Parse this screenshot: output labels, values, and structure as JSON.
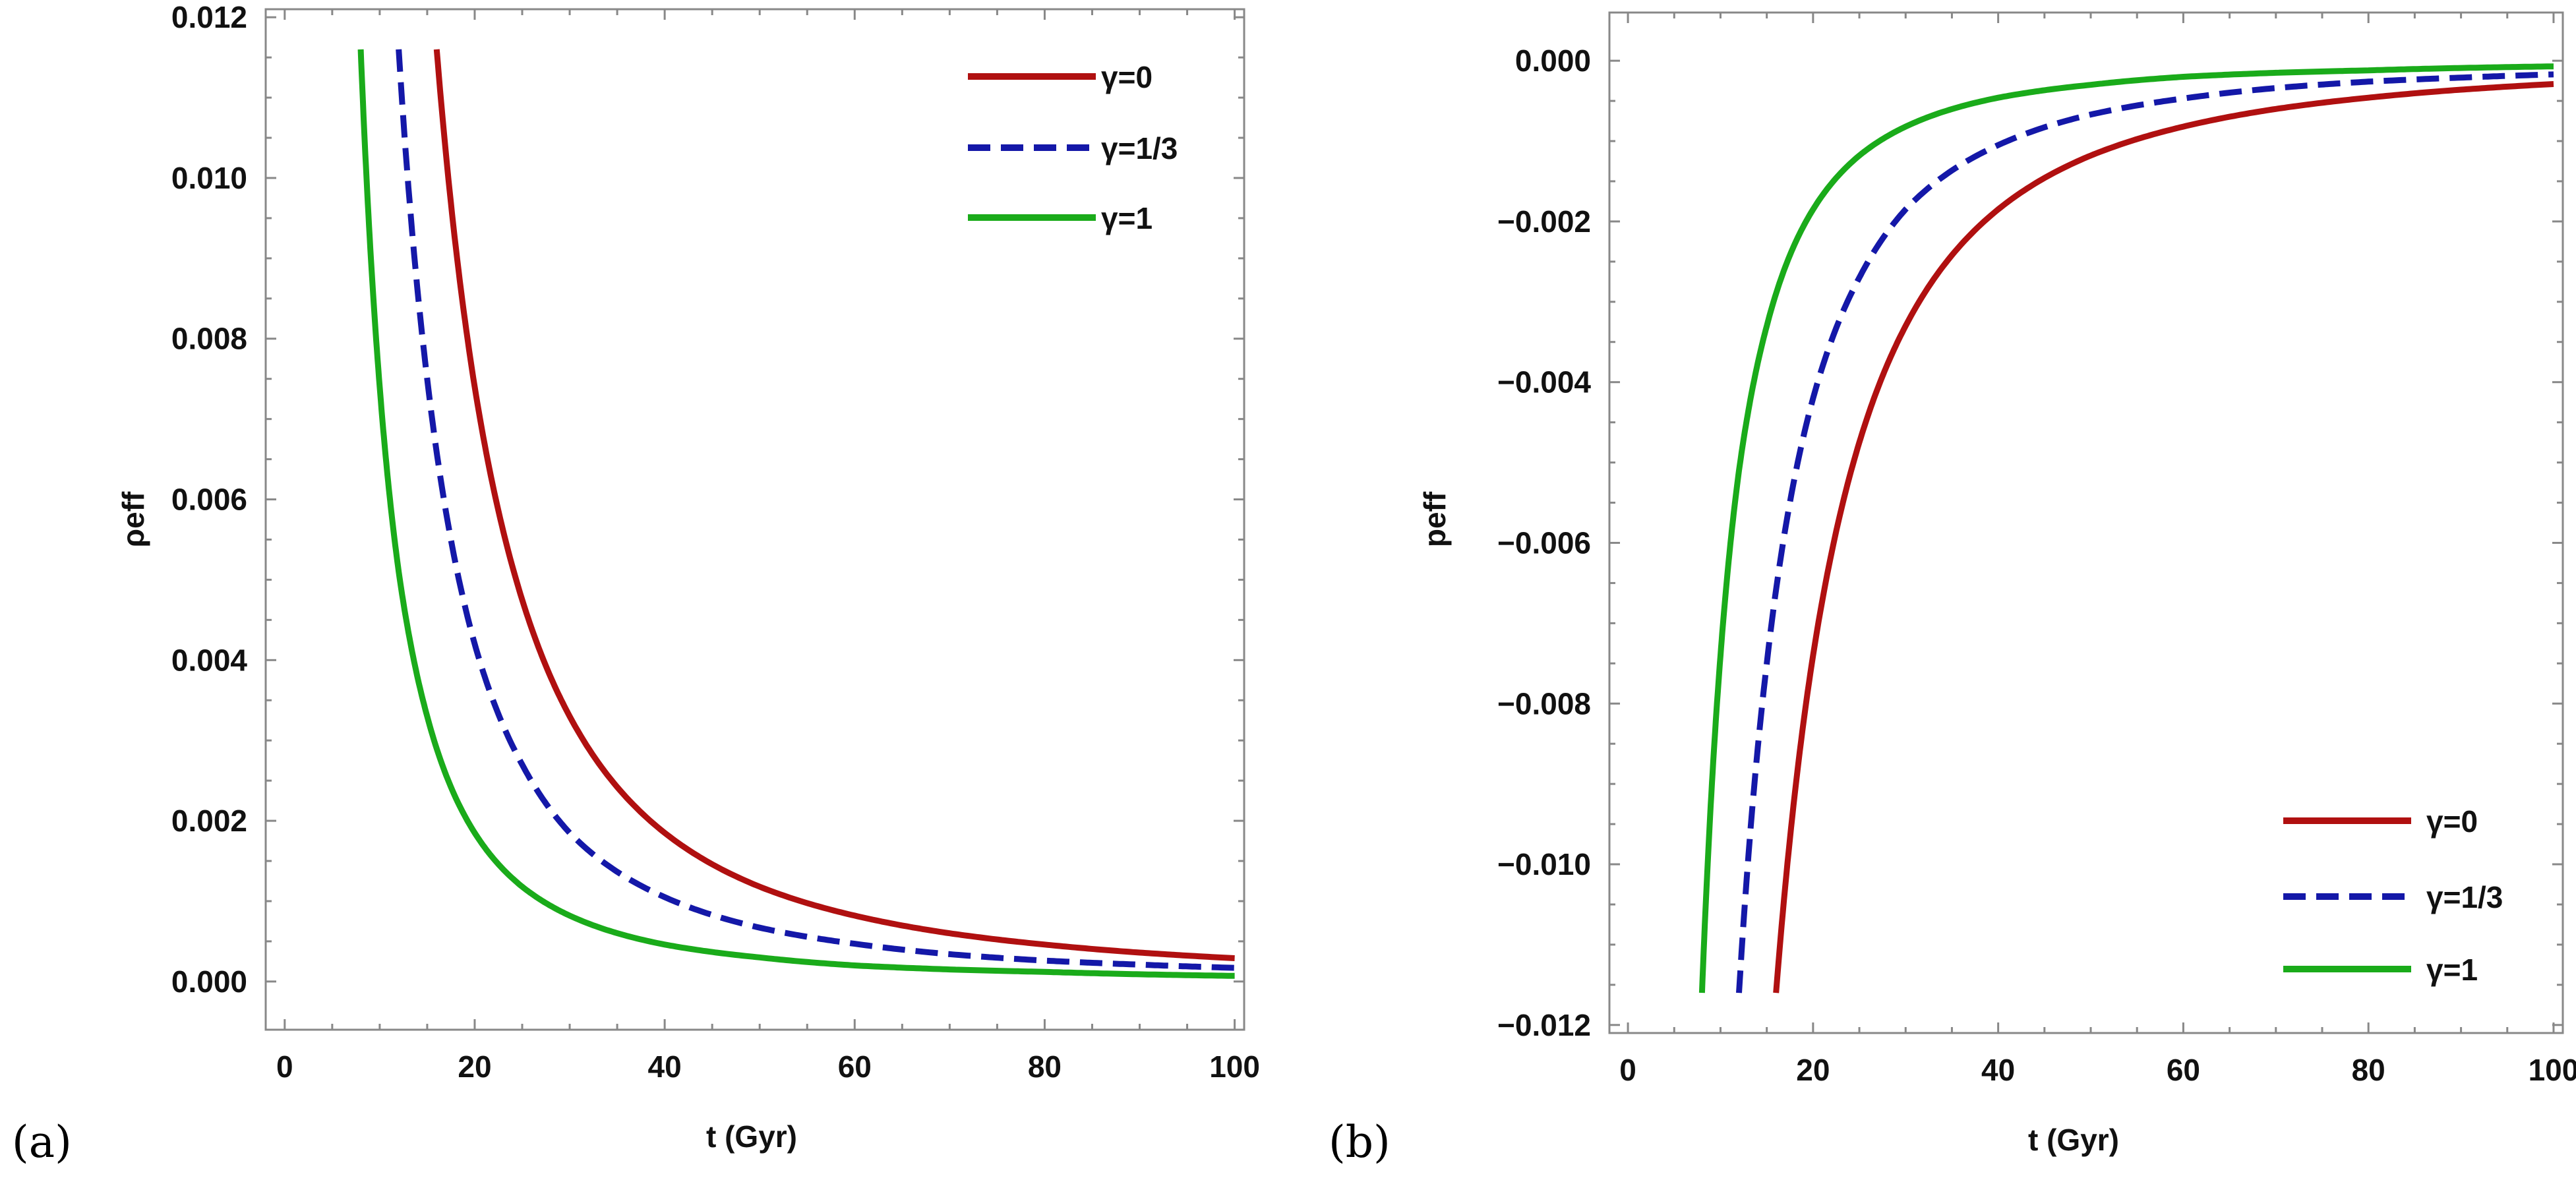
{
  "chart_data": [
    {
      "id": "a",
      "panel_label": "(a)",
      "type": "line",
      "title": "",
      "xlabel": "t (Gyr)",
      "ylabel": "ρeff",
      "xlim": [
        -2,
        101
      ],
      "ylim": [
        -0.0006,
        0.0121
      ],
      "xticks": [
        0,
        20,
        40,
        60,
        80,
        100
      ],
      "xtick_labels": [
        "0",
        "20",
        "40",
        "60",
        "80",
        "100"
      ],
      "yticks": [
        0.0,
        0.002,
        0.004,
        0.006,
        0.008,
        0.01,
        0.012
      ],
      "ytick_labels": [
        "0.000",
        "0.002",
        "0.004",
        "0.006",
        "0.008",
        "0.010",
        "0.012"
      ],
      "legend_position": "top-right",
      "series": [
        {
          "name": "γ=0",
          "color": "#b01010",
          "dash": "solid",
          "x": [
            16,
            20,
            25,
            30,
            40,
            50,
            60,
            70,
            80,
            90,
            100
          ],
          "y": [
            0.0116,
            0.0074,
            0.00475,
            0.0033,
            0.00185,
            0.00118,
            0.00082,
            0.0006,
            0.00046,
            0.00036,
            0.00029
          ]
        },
        {
          "name": "γ=1/3",
          "color": "#1418a8",
          "dash": "dashed",
          "x": [
            12,
            15,
            20,
            25,
            30,
            40,
            50,
            60,
            70,
            80,
            90,
            100
          ],
          "y": [
            0.0116,
            0.0075,
            0.0042,
            0.0027,
            0.00185,
            0.00105,
            0.00067,
            0.00047,
            0.00034,
            0.00026,
            0.00021,
            0.00017
          ]
        },
        {
          "name": "γ=1",
          "color": "#1aab1a",
          "dash": "solid",
          "x": [
            8,
            10,
            12,
            15,
            20,
            25,
            30,
            40,
            50,
            60,
            70,
            80,
            90,
            100
          ],
          "y": [
            0.0116,
            0.0074,
            0.0051,
            0.0033,
            0.00185,
            0.00118,
            0.00082,
            0.00046,
            0.0003,
            0.0002,
            0.00015,
            0.00012,
            9e-05,
            7e-05
          ]
        }
      ]
    },
    {
      "id": "b",
      "panel_label": "(b)",
      "type": "line",
      "title": "",
      "xlabel": "t (Gyr)",
      "ylabel": "peff",
      "xlim": [
        -2,
        101
      ],
      "ylim": [
        -0.0121,
        0.0006
      ],
      "xticks": [
        0,
        20,
        40,
        60,
        80,
        100
      ],
      "xtick_labels": [
        "0",
        "20",
        "40",
        "60",
        "80",
        "100"
      ],
      "yticks": [
        -0.012,
        -0.01,
        -0.008,
        -0.006,
        -0.004,
        -0.002,
        0.0
      ],
      "ytick_labels": [
        "−0.012",
        "−0.010",
        "−0.008",
        "−0.006",
        "−0.004",
        "−0.002",
        "0.000"
      ],
      "legend_position": "bottom-right",
      "series": [
        {
          "name": "γ=0",
          "color": "#b01010",
          "dash": "solid",
          "x": [
            16,
            20,
            25,
            30,
            40,
            50,
            60,
            70,
            80,
            90,
            100
          ],
          "y": [
            -0.0116,
            -0.0074,
            -0.00475,
            -0.0033,
            -0.00185,
            -0.00118,
            -0.00082,
            -0.0006,
            -0.00046,
            -0.00036,
            -0.00029
          ]
        },
        {
          "name": "γ=1/3",
          "color": "#1418a8",
          "dash": "dashed",
          "x": [
            12,
            15,
            20,
            25,
            30,
            40,
            50,
            60,
            70,
            80,
            90,
            100
          ],
          "y": [
            -0.0116,
            -0.0075,
            -0.0042,
            -0.0027,
            -0.00185,
            -0.00105,
            -0.00067,
            -0.00047,
            -0.00034,
            -0.00026,
            -0.00021,
            -0.00017
          ]
        },
        {
          "name": "γ=1",
          "color": "#1aab1a",
          "dash": "solid",
          "x": [
            8,
            10,
            12,
            15,
            20,
            25,
            30,
            40,
            50,
            60,
            70,
            80,
            90,
            100
          ],
          "y": [
            -0.0116,
            -0.0074,
            -0.0051,
            -0.0033,
            -0.00185,
            -0.00118,
            -0.00082,
            -0.00046,
            -0.0003,
            -0.0002,
            -0.00015,
            -0.00012,
            -9e-05,
            -7e-05
          ]
        }
      ]
    }
  ]
}
